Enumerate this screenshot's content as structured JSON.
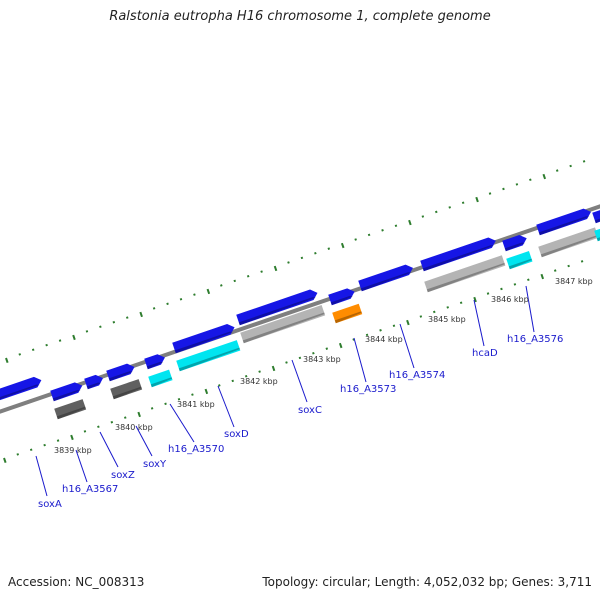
{
  "title": "Ralstonia eutropha H16 chromosome 1, complete genome",
  "footer": {
    "accession": "Accession: NC_008313",
    "topology": "Topology: circular; Length: 4,052,032 bp; Genes: 3,711"
  },
  "colors": {
    "backbone": "#7f7f7f",
    "tick": "#2e7d2e",
    "cds_blue": "#1616e6",
    "cds_cyan": "#00e5f0",
    "cds_gray": "#b4b4b4",
    "cds_dark": "#606060",
    "cds_orange": "#ff8c00",
    "label": "#1a1acc"
  },
  "kbp_labels": [
    "3839 kbp",
    "3840 kbp",
    "3841 kbp",
    "3842 kbp",
    "3843 kbp",
    "3844 kbp",
    "3845 kbp",
    "3846 kbp",
    "3847 kbp"
  ],
  "gene_labels": [
    "soxA",
    "h16_A3567",
    "soxZ",
    "soxY",
    "h16_A3570",
    "soxD",
    "soxC",
    "h16_A3573",
    "h16_A3574",
    "hcaD",
    "h16_A3576"
  ]
}
